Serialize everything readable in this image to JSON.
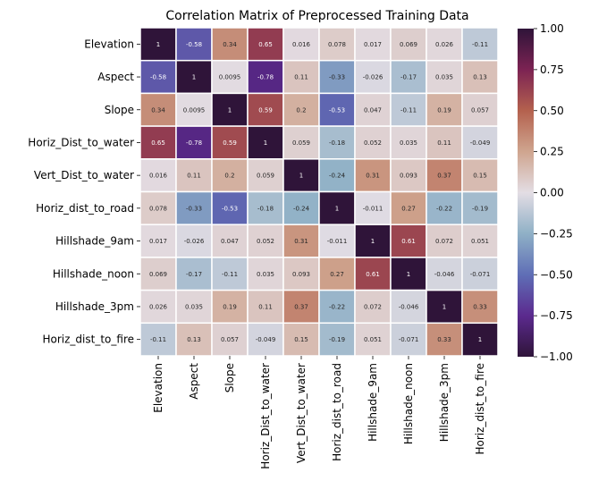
{
  "chart_data": {
    "type": "heatmap",
    "title": "Correlation Matrix of Preprocessed Training Data",
    "xlabel": "",
    "ylabel": "",
    "labels": [
      "Elevation",
      "Aspect",
      "Slope",
      "Horiz_Dist_to_water",
      "Vert_Dist_to_water",
      "Horiz_dist_to_road",
      "Hillshade_9am",
      "Hillshade_noon",
      "Hillshade_3pm",
      "Horiz_dist_to_fire"
    ],
    "matrix": [
      [
        1,
        -0.58,
        0.34,
        0.65,
        0.016,
        0.078,
        0.017,
        0.069,
        0.026,
        -0.11
      ],
      [
        -0.58,
        1,
        0.0095,
        -0.78,
        0.11,
        -0.33,
        -0.026,
        -0.17,
        0.035,
        0.13
      ],
      [
        0.34,
        0.0095,
        1,
        0.59,
        0.2,
        -0.53,
        0.047,
        -0.11,
        0.19,
        0.057
      ],
      [
        0.65,
        -0.78,
        0.59,
        1,
        0.059,
        -0.18,
        0.052,
        0.035,
        0.11,
        -0.049
      ],
      [
        0.016,
        0.11,
        0.2,
        0.059,
        1,
        -0.24,
        0.31,
        0.093,
        0.37,
        0.15
      ],
      [
        0.078,
        -0.33,
        -0.53,
        -0.18,
        -0.24,
        1,
        -0.011,
        0.27,
        -0.22,
        -0.19
      ],
      [
        0.017,
        -0.026,
        0.047,
        0.052,
        0.31,
        -0.011,
        1,
        0.61,
        0.072,
        0.051
      ],
      [
        0.069,
        -0.17,
        -0.11,
        0.035,
        0.093,
        0.27,
        0.61,
        1,
        -0.046,
        -0.071
      ],
      [
        0.026,
        0.035,
        0.19,
        0.11,
        0.37,
        -0.22,
        0.072,
        -0.046,
        1,
        0.33
      ],
      [
        -0.11,
        0.13,
        0.057,
        -0.049,
        0.15,
        -0.19,
        0.051,
        -0.071,
        0.33,
        1
      ]
    ],
    "cell_labels": [
      [
        "1",
        "-0.58",
        "0.34",
        "0.65",
        "0.016",
        "0.078",
        "0.017",
        "0.069",
        "0.026",
        "-0.11"
      ],
      [
        "-0.58",
        "1",
        "0.0095",
        "-0.78",
        "0.11",
        "-0.33",
        "-0.026",
        "-0.17",
        "0.035",
        "0.13"
      ],
      [
        "0.34",
        "0.0095",
        "1",
        "0.59",
        "0.2",
        "-0.53",
        "0.047",
        "-0.11",
        "0.19",
        "0.057"
      ],
      [
        "0.65",
        "-0.78",
        "0.59",
        "1",
        "0.059",
        "-0.18",
        "0.052",
        "0.035",
        "0.11",
        "-0.049"
      ],
      [
        "0.016",
        "0.11",
        "0.2",
        "0.059",
        "1",
        "-0.24",
        "0.31",
        "0.093",
        "0.37",
        "0.15"
      ],
      [
        "0.078",
        "-0.33",
        "-0.53",
        "-0.18",
        "-0.24",
        "1",
        "-0.011",
        "0.27",
        "-0.22",
        "-0.19"
      ],
      [
        "0.017",
        "-0.026",
        "0.047",
        "0.052",
        "0.31",
        "-0.011",
        "1",
        "0.61",
        "0.072",
        "0.051"
      ],
      [
        "0.069",
        "-0.17",
        "-0.11",
        "0.035",
        "0.093",
        "0.27",
        "0.61",
        "1",
        "-0.046",
        "-0.071"
      ],
      [
        "0.026",
        "0.035",
        "0.19",
        "0.11",
        "0.37",
        "-0.22",
        "0.072",
        "-0.046",
        "1",
        "0.33"
      ],
      [
        "-0.11",
        "0.13",
        "0.057",
        "-0.049",
        "0.15",
        "-0.19",
        "0.051",
        "-0.071",
        "0.33",
        "1"
      ]
    ],
    "colorbar": {
      "range": [
        -1,
        1
      ],
      "ticks": [
        1.0,
        0.75,
        0.5,
        0.25,
        0.0,
        -0.25,
        -0.5,
        -0.75,
        -1.0
      ],
      "tick_labels": [
        "1.00",
        "0.75",
        "0.50",
        "0.25",
        "0.00",
        "−0.25",
        "−0.50",
        "−0.75",
        "−1.00"
      ],
      "colormap": "twilight_shifted",
      "color_stops": [
        {
          "v": -1.0,
          "color": "#2f1439"
        },
        {
          "v": -0.75,
          "color": "#5b2a8e"
        },
        {
          "v": -0.5,
          "color": "#5f6eb6"
        },
        {
          "v": -0.25,
          "color": "#8fb0c6"
        },
        {
          "v": 0.0,
          "color": "#e3dde4"
        },
        {
          "v": 0.25,
          "color": "#cfa58f"
        },
        {
          "v": 0.5,
          "color": "#b4614e"
        },
        {
          "v": 0.75,
          "color": "#7c2353"
        },
        {
          "v": 1.0,
          "color": "#2f1439"
        }
      ]
    },
    "grid_line_color": "#ffffff",
    "legend": "right"
  }
}
